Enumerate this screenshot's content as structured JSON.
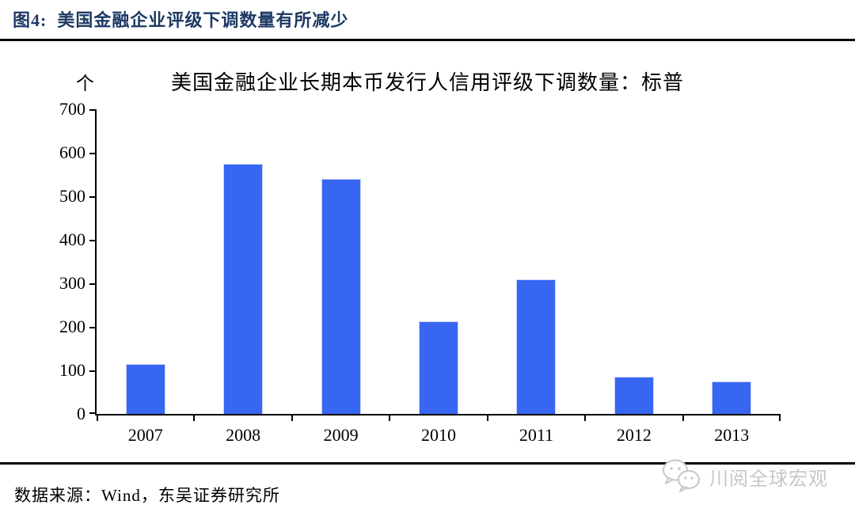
{
  "header": {
    "caption": "图4:  美国金融企业评级下调数量有所减少"
  },
  "chart_data": {
    "type": "bar",
    "title": "美国金融企业长期本币发行人信用评级下调数量：标普",
    "unit": "个",
    "categories": [
      "2007",
      "2008",
      "2009",
      "2010",
      "2011",
      "2012",
      "2013"
    ],
    "values": [
      115,
      575,
      540,
      212,
      310,
      85,
      75
    ],
    "ylim": [
      0,
      700
    ],
    "ytick_step": 100,
    "grid": false,
    "legend": false,
    "bar_color": "#3766F3",
    "bar_border_color": "#C9D4F8",
    "axis_color": "#000000"
  },
  "footer": {
    "source": "数据来源：Wind，东吴证券研究所",
    "watermark": "川阅全球宏观"
  },
  "colors": {
    "caption": "#1E3A64",
    "watermark_gray": "#C7C7C7"
  }
}
